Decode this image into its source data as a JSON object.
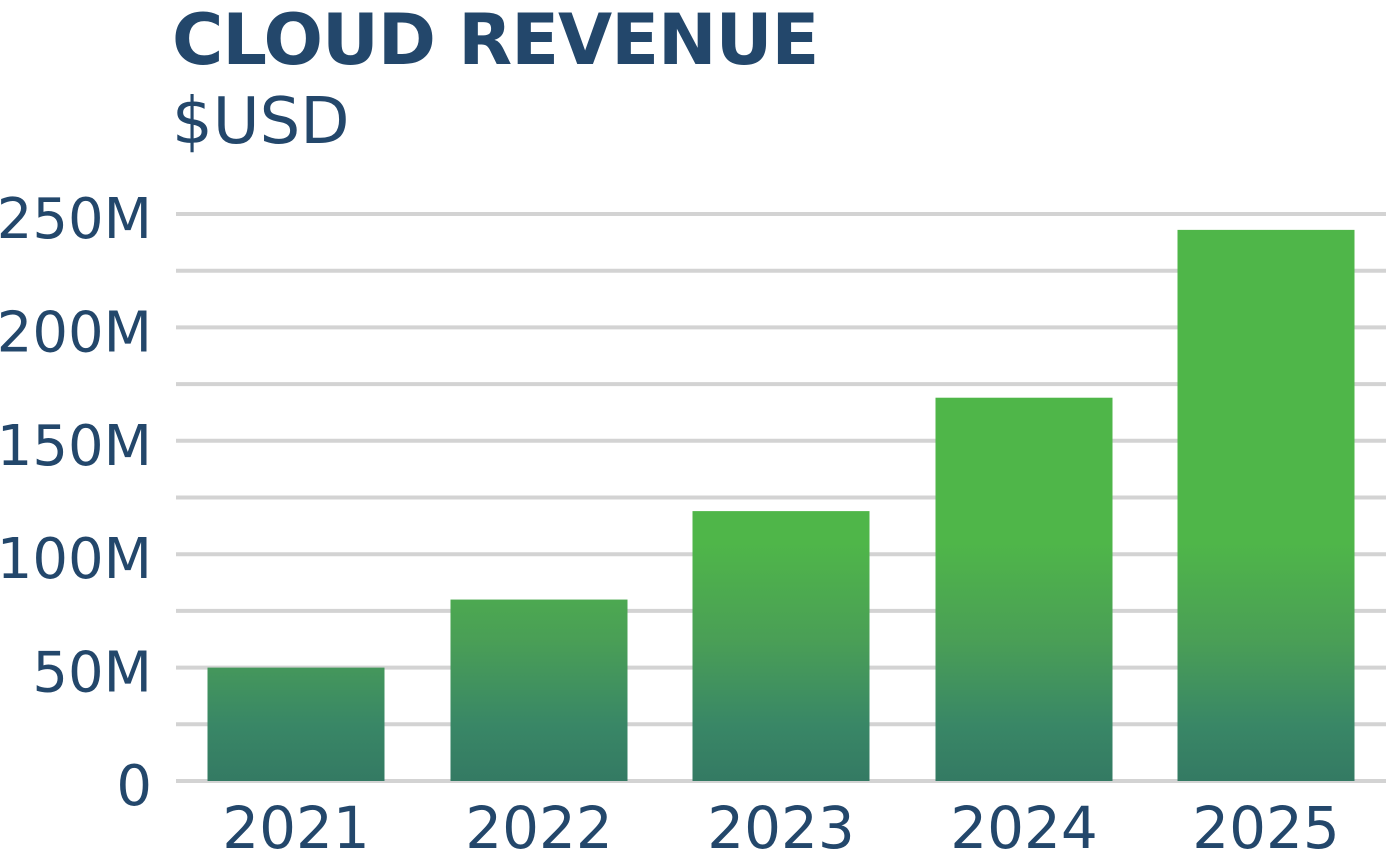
{
  "chart_data": {
    "type": "bar",
    "title": "CLOUD REVENUE",
    "subtitle": "$USD",
    "xlabel": "",
    "ylabel": "",
    "categories": [
      "2021",
      "2022",
      "2023",
      "2024",
      "2025"
    ],
    "values": [
      50,
      80,
      119,
      169,
      243
    ],
    "value_unit": "M",
    "ylim": [
      0,
      250
    ],
    "yticks": [
      {
        "value": 0,
        "label": "0"
      },
      {
        "value": 50,
        "label": "50M"
      },
      {
        "value": 100,
        "label": "100M"
      },
      {
        "value": 150,
        "label": "150M"
      },
      {
        "value": 200,
        "label": "200M"
      },
      {
        "value": 250,
        "label": "250M"
      }
    ],
    "minor_gridlines": [
      25,
      75,
      125,
      175,
      225
    ],
    "grid": true,
    "legend": "none",
    "colors": {
      "bar_top": "#4fb649",
      "bar_bottom": "#347a63",
      "text": "#23476b",
      "grid": "#d3d3d3"
    }
  }
}
